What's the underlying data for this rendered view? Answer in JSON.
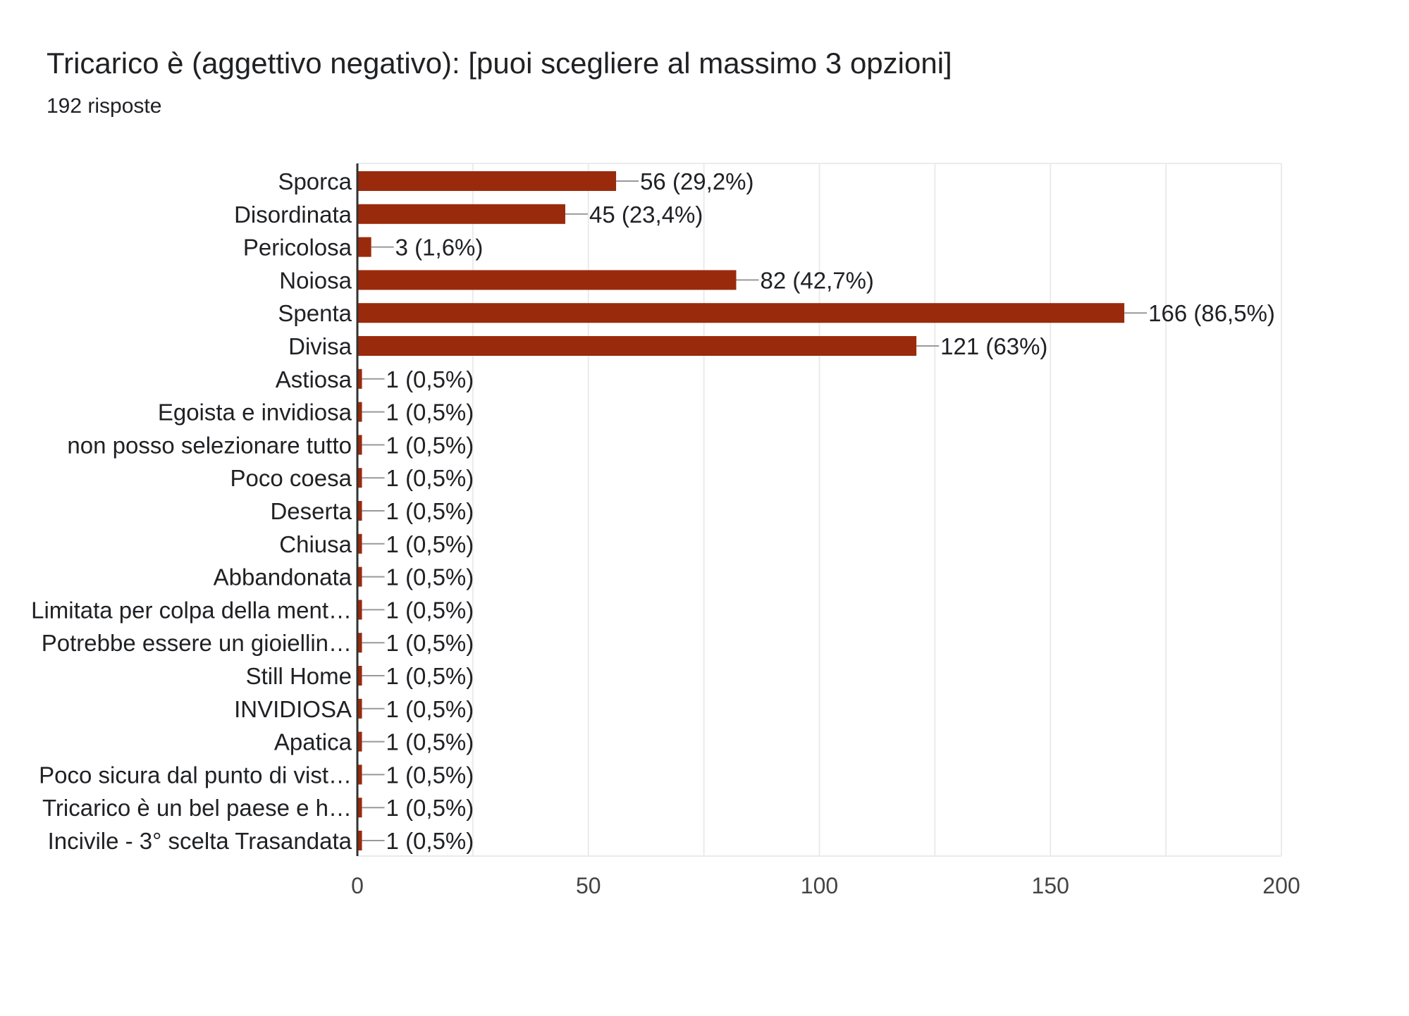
{
  "chart_data": {
    "type": "bar",
    "orientation": "horizontal",
    "title": "Tricarico è (aggettivo negativo):  [puoi scegliere al massimo 3 opzioni]",
    "subtitle": "192 risposte",
    "categories": [
      "Sporca",
      "Disordinata",
      "Pericolosa",
      "Noiosa",
      "Spenta",
      "Divisa",
      "Astiosa",
      "Egoista e invidiosa",
      "non posso selezionare tutto",
      "Poco coesa",
      "Deserta",
      "Chiusa",
      "Abbandonata",
      "Limitata per colpa della ment…",
      "Potrebbe essere un gioiellin…",
      "Still Home",
      "INVIDIOSA",
      "Apatica",
      "Poco sicura dal punto di vist…",
      "Tricarico è un bel paese e h…",
      "Incivile - 3° scelta Trasandata"
    ],
    "values": [
      56,
      45,
      3,
      82,
      166,
      121,
      1,
      1,
      1,
      1,
      1,
      1,
      1,
      1,
      1,
      1,
      1,
      1,
      1,
      1,
      1
    ],
    "data_labels": [
      "56 (29,2%)",
      "45 (23,4%)",
      "3 (1,6%)",
      "82 (42,7%)",
      "166 (86,5%)",
      "121 (63%)",
      "1 (0,5%)",
      "1 (0,5%)",
      "1 (0,5%)",
      "1 (0,5%)",
      "1 (0,5%)",
      "1 (0,5%)",
      "1 (0,5%)",
      "1 (0,5%)",
      "1 (0,5%)",
      "1 (0,5%)",
      "1 (0,5%)",
      "1 (0,5%)",
      "1 (0,5%)",
      "1 (0,5%)",
      "1 (0,5%)"
    ],
    "xlim": [
      0,
      200
    ],
    "xticks": [
      "0",
      "50",
      "100",
      "150",
      "200"
    ],
    "grid": true,
    "bar_color": "#9a2a0c",
    "grid_color": "#ebebeb",
    "axis_color": "#333333"
  }
}
